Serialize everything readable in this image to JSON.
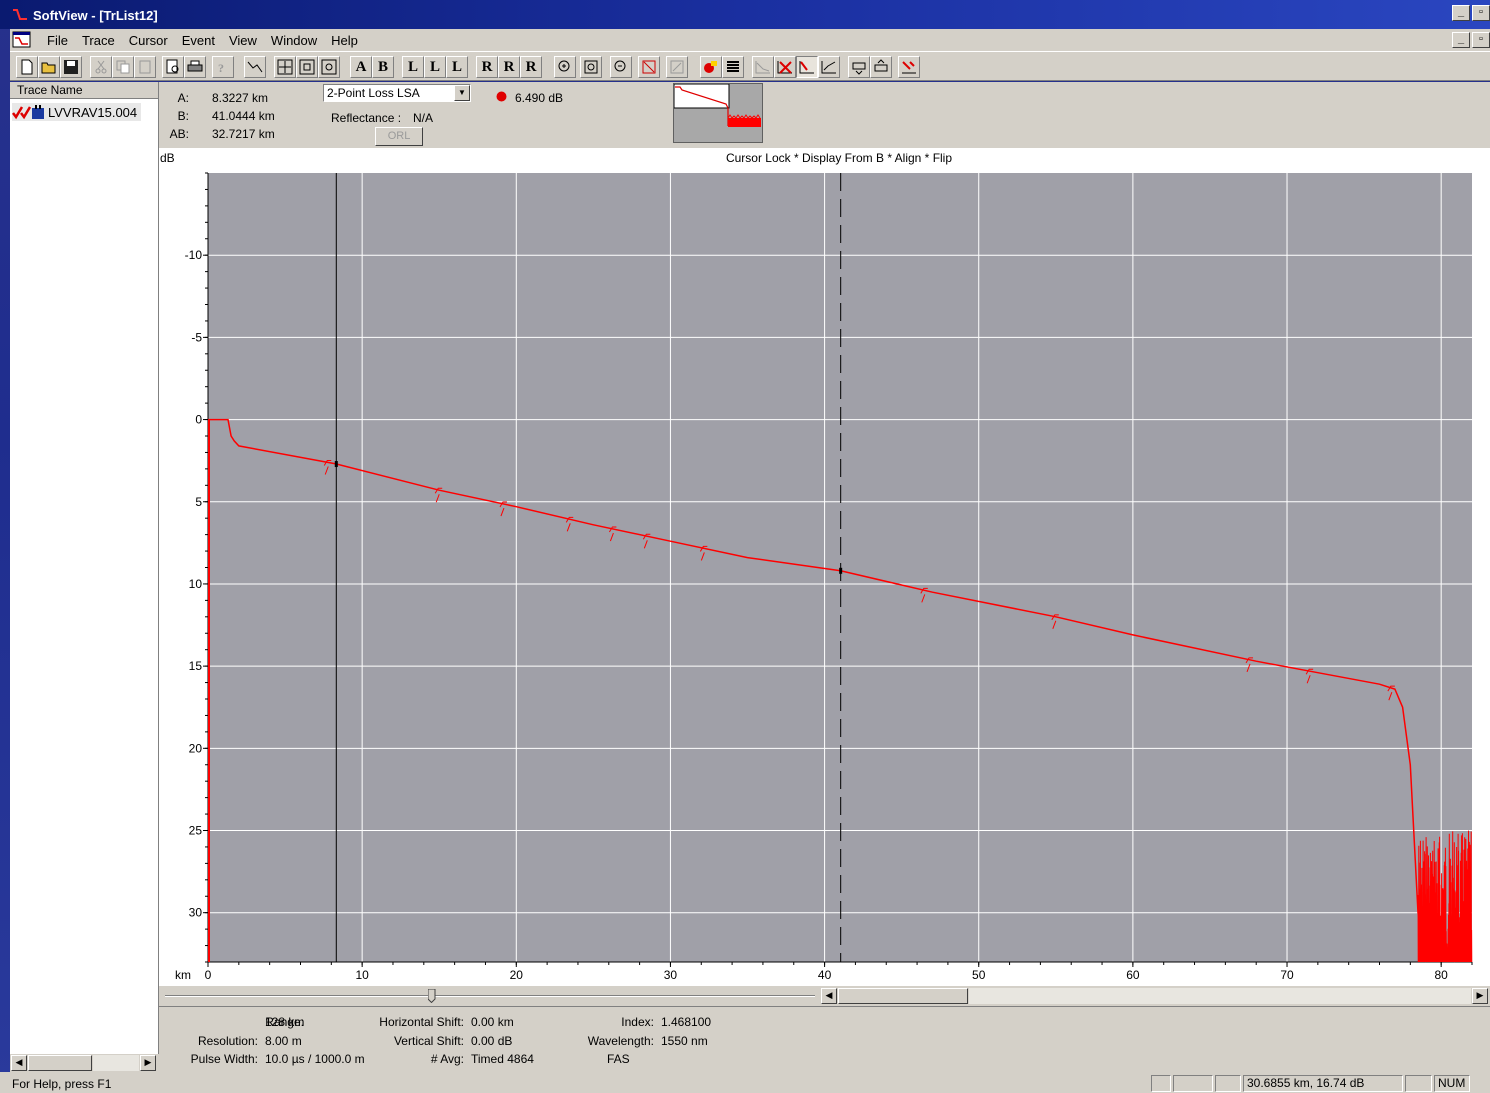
{
  "window": {
    "title": "SoftView - [TrList12]",
    "controls": [
      "_",
      "🗗",
      "✕"
    ]
  },
  "menu": {
    "items": [
      "File",
      "Trace",
      "Cursor",
      "Event",
      "View",
      "Window",
      "Help"
    ]
  },
  "toolbar": {
    "cursor_buttons": [
      "A",
      "B",
      "L",
      "L",
      "L",
      "R",
      "R",
      "R"
    ]
  },
  "trace_list": {
    "header": "Trace Name",
    "items": [
      {
        "label": "LVVRAV15.004"
      }
    ]
  },
  "info": {
    "a_label": "A:",
    "a_value": "8.3227 km",
    "b_label": "B:",
    "b_value": "41.0444 km",
    "ab_label": "AB:",
    "ab_value": "32.7217 km",
    "loss_method": "2-Point Loss LSA",
    "loss_value": "6.490 dB",
    "reflectance_label": "Reflectance :",
    "reflectance_value": "N/A",
    "orl_button": "ORL"
  },
  "plot": {
    "y_unit": "dB",
    "x_unit": "km",
    "header": "Cursor Lock * Display From B * Align * Flip",
    "trace_color": "#ff0000",
    "background_color": "#a0a0a8"
  },
  "chart_data": {
    "type": "line",
    "title": "Cursor Lock * Display From B * Align * Flip",
    "xlabel": "km",
    "ylabel": "dB",
    "xlim": [
      0,
      82
    ],
    "ylim": [
      -15,
      33
    ],
    "y_inverted": true,
    "grid": true,
    "x_ticks": [
      0,
      10,
      20,
      30,
      40,
      50,
      60,
      70,
      80
    ],
    "y_ticks": [
      -10,
      -5,
      0,
      5,
      10,
      15,
      20,
      25,
      30
    ],
    "cursors": [
      {
        "name": "A",
        "x": 8.3227,
        "style": "solid"
      },
      {
        "name": "B",
        "x": 41.0444,
        "style": "dashed"
      }
    ],
    "series": [
      {
        "x": [
          0,
          1.3,
          1.5,
          1.7,
          2.0,
          8.3,
          15,
          20,
          25,
          30,
          35,
          41.04,
          47,
          55,
          60,
          68,
          72,
          76,
          77,
          77.5,
          78,
          78.5,
          79
        ],
        "y": [
          0,
          0,
          1.0,
          1.3,
          1.6,
          2.7,
          4.3,
          5.3,
          6.4,
          7.4,
          8.4,
          9.2,
          10.5,
          12.0,
          13.1,
          14.7,
          15.4,
          16.1,
          16.4,
          17.5,
          21.0,
          30.0,
          33.0
        ]
      }
    ],
    "events_km": [
      7.8,
      15,
      19.2,
      23.5,
      26.3,
      28.5,
      32.2,
      46.5,
      55,
      67.6,
      71.5,
      76.8
    ],
    "noise_floor_range": [
      78.5,
      82
    ]
  },
  "slider": {
    "value_fraction": 0.3
  },
  "params": {
    "range_label": "Range:",
    "range_value": "128 km",
    "resolution_label": "Resolution:",
    "resolution_value": "8.00 m",
    "pulse_label": "Pulse Width:",
    "pulse_value": "10.0 µs / 1000.0 m",
    "hshift_label": "Horizontal Shift:",
    "hshift_value": "0.00 km",
    "vshift_label": "Vertical Shift:",
    "vshift_value": "0.00 dB",
    "avg_label": "# Avg:",
    "avg_value": "Timed 4864",
    "index_label": "Index:",
    "index_value": "1.468100",
    "wavelength_label": "Wavelength:",
    "wavelength_value": "1550 nm",
    "fas_label": "FAS"
  },
  "status": {
    "help": "For Help, press F1",
    "coords": "30.6855 km, 16.74 dB",
    "num": "NUM"
  }
}
